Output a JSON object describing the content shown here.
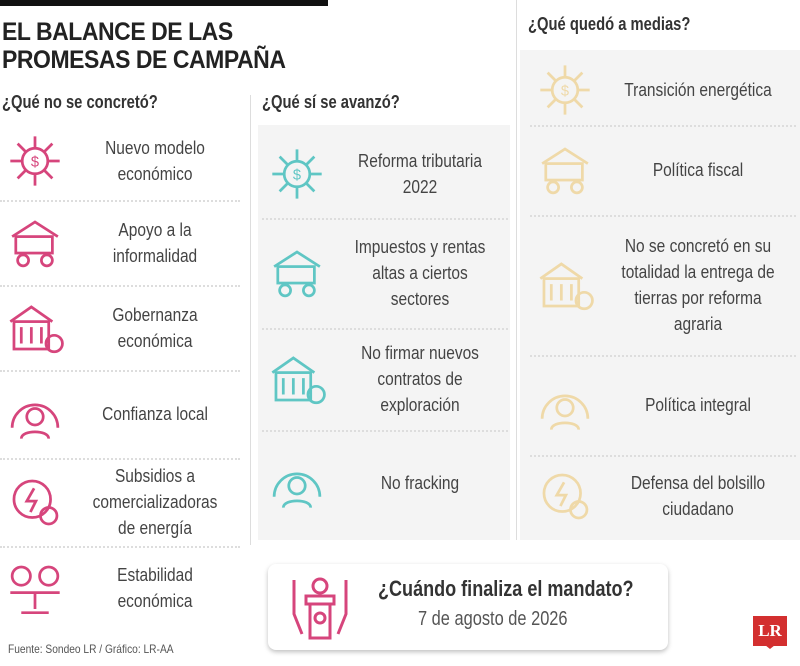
{
  "title": "EL BALANCE DE LAS PROMESAS DE CAMPAÑA",
  "colors": {
    "not_done": "#d6457c",
    "done": "#5fc6c4",
    "partial": "#efd9a8"
  },
  "not_done": {
    "heading": "¿Qué no se concretó?",
    "items": [
      {
        "label": "Nuevo modelo económico",
        "icon": "network-coin-icon"
      },
      {
        "label": "Apoyo a la informalidad",
        "icon": "street-vendor-cart-icon"
      },
      {
        "label": "Gobernanza económica",
        "icon": "government-building-money-icon"
      },
      {
        "label": "Confianza local",
        "icon": "person-gauge-icon"
      },
      {
        "label": "Subsidios a comercializadoras de energía",
        "icon": "energy-coin-icon"
      },
      {
        "label": "Estabilidad económica",
        "icon": "balance-scale-coins-icon"
      }
    ]
  },
  "done": {
    "heading": "¿Qué sí se avanzó?",
    "items": [
      {
        "label": "Reforma tributaria 2022",
        "icon": "tax-document-chart-icon"
      },
      {
        "label": "Impuestos y rentas altas a ciertos sectores",
        "icon": "money-bills-icon"
      },
      {
        "label": "No firmar nuevos contratos de exploración",
        "icon": "contract-signing-icon"
      },
      {
        "label": "No fracking",
        "icon": "drilling-rig-icon"
      }
    ]
  },
  "partial": {
    "heading": "¿Qué quedó a medias?",
    "items": [
      {
        "label": "Transición energética",
        "icon": "globe-leaf-icon"
      },
      {
        "label": "Política fiscal",
        "icon": "bank-building-icon"
      },
      {
        "label": "No se concretó en su totalidad la entrega de tierras por reforma agraria",
        "icon": "hands-people-icon"
      },
      {
        "label": "Política integral",
        "icon": "people-group-icon"
      },
      {
        "label": "Defensa del bolsillo ciudadano",
        "icon": "shield-dollar-icon"
      }
    ]
  },
  "mandate": {
    "question": "¿Cuándo finaliza el mandato?",
    "date": "7 de agosto de 2026",
    "icon": "podium-icon"
  },
  "source": "Fuente: Sondeo LR / Gráfico: LR-AA",
  "logo": "LR"
}
